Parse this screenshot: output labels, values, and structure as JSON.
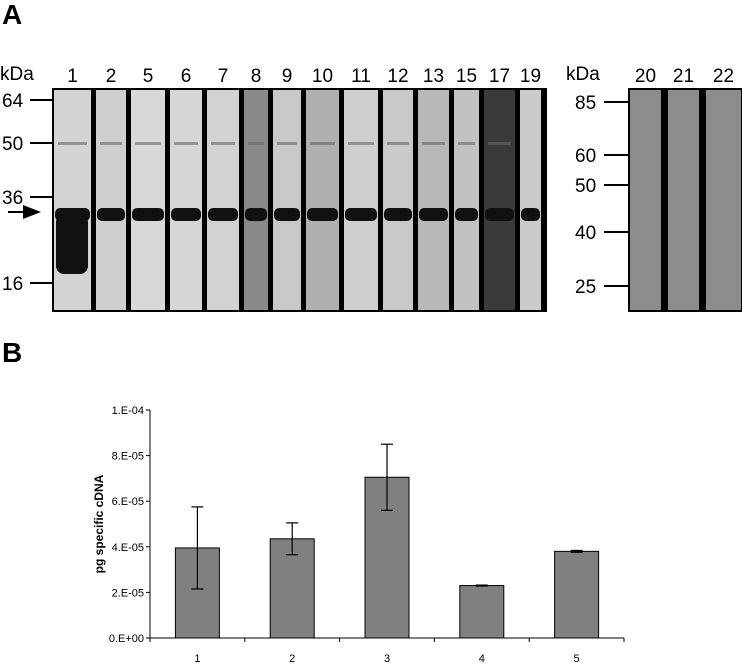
{
  "panel_a": {
    "letter": "A",
    "blot_left": {
      "unit": "kDa",
      "lanes": [
        "1",
        "2",
        "5",
        "6",
        "7",
        "8",
        "9",
        "10",
        "11",
        "12",
        "13",
        "15",
        "17",
        "19"
      ],
      "markers": [
        "64",
        "50",
        "36",
        "16"
      ]
    },
    "blot_right": {
      "unit": "kDa",
      "lanes": [
        "20",
        "21",
        "22"
      ],
      "markers": [
        "85",
        "60",
        "50",
        "40",
        "25"
      ]
    }
  },
  "panel_b": {
    "letter": "B"
  },
  "chart_data": {
    "type": "bar",
    "categories": [
      "1",
      "2",
      "3",
      "4",
      "5"
    ],
    "values": [
      3.95e-05,
      4.35e-05,
      7.05e-05,
      2.3e-05,
      3.8e-05
    ],
    "errors": [
      1.8e-05,
      7e-06,
      1.45e-05,
      2e-07,
      4e-07
    ],
    "ylabel": "pg specific cDNA",
    "xlabel": "",
    "ylim": [
      0,
      0.0001
    ],
    "yticks": [
      "0.E+00",
      "2.E-05",
      "4.E-05",
      "6.E-05",
      "8.E-05",
      "1.E-04"
    ],
    "grid": false,
    "bar_color": "#808080"
  }
}
